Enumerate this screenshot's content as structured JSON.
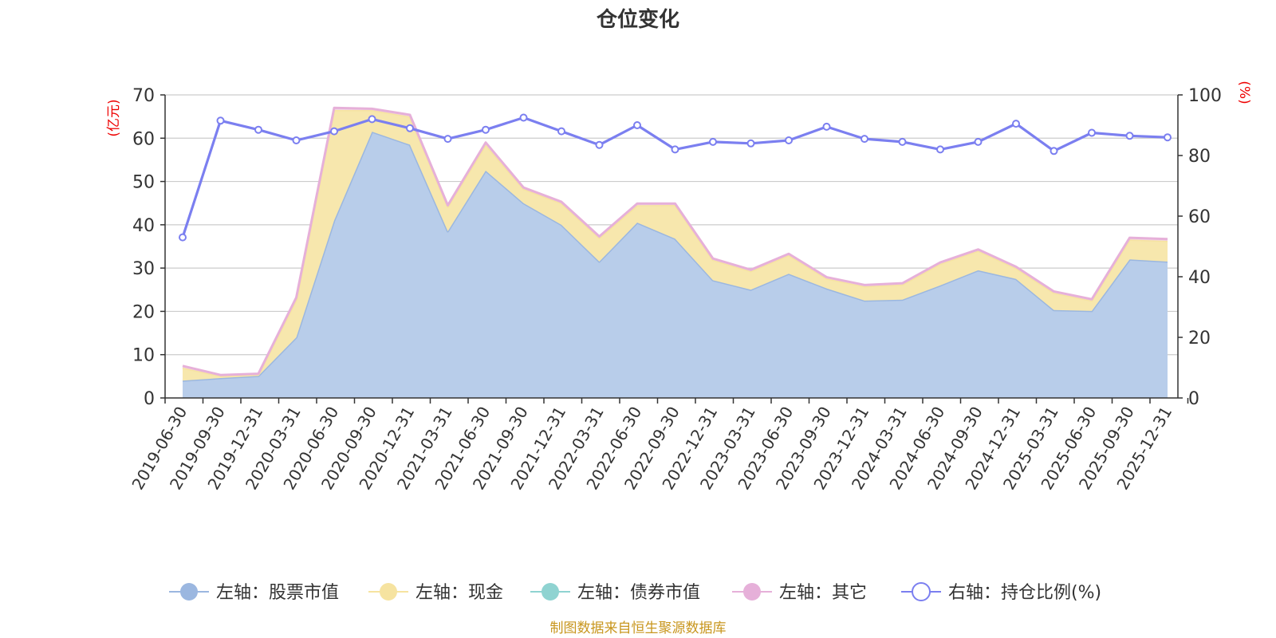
{
  "chart_data": {
    "type": "area",
    "title": "仓位变化",
    "source": "制图数据来自恒生聚源数据库",
    "left_unit": "(亿元)",
    "right_unit": "(%)",
    "left_ylim": [
      0,
      70
    ],
    "left_ticks": [
      0,
      10,
      20,
      30,
      40,
      50,
      60,
      70
    ],
    "right_ylim": [
      0,
      100
    ],
    "right_ticks": [
      0,
      20,
      40,
      60,
      80,
      100
    ],
    "grid": true,
    "legend_position": "bottom",
    "x_tick_labels": [
      "2019-06-30",
      "2019-09-30",
      "2019-12-31",
      "2020-03-31",
      "2020-06-30",
      "2020-09-30",
      "2020-12-31",
      "2021-03-31",
      "2021-06-30",
      "2021-09-30",
      "2021-12-31",
      "2022-03-31",
      "2022-06-30",
      "2022-09-30",
      "2022-12-31",
      "2023-03-31",
      "2023-06-30",
      "2023-09-30",
      "2023-12-31",
      "2024-03-31",
      "2024-06-30",
      "2024-09-30",
      "2024-12-31",
      "2025-03-31",
      "2025-06-30",
      "2025-09-30",
      "2025-12-31"
    ],
    "series": [
      {
        "name": "左轴：股票市值",
        "axis": "left",
        "color": "#9bb7e0",
        "fill": "#b8cdea",
        "values": [
          4.0,
          4.6,
          5.1,
          14.0,
          41.0,
          61.5,
          58.5,
          38.5,
          52.5,
          45.0,
          40.0,
          31.5,
          40.5,
          36.8,
          27.2,
          25.0,
          28.7,
          25.3,
          22.5,
          22.7,
          26.0,
          29.5,
          27.5,
          20.3,
          20.1,
          32.0,
          31.5
        ]
      },
      {
        "name": "左轴：现金",
        "axis": "left",
        "color": "#f6e3a0",
        "fill": "#f7e7ad",
        "values": [
          3.0,
          0.5,
          0.3,
          8.7,
          25.5,
          5.0,
          6.5,
          5.7,
          6.0,
          3.3,
          5.0,
          5.5,
          4.0,
          7.8,
          4.7,
          4.3,
          4.3,
          2.3,
          3.3,
          3.5,
          5.0,
          4.5,
          2.5,
          4.0,
          2.4,
          4.6,
          4.8
        ]
      },
      {
        "name": "左轴：债券市值",
        "axis": "left",
        "color": "#8fd3d1",
        "fill": "#8fd3d1",
        "values": [
          0,
          0,
          0,
          0,
          0,
          0,
          0,
          0,
          0,
          0,
          0,
          0,
          0,
          0,
          0,
          0,
          0,
          0,
          0,
          0,
          0,
          0,
          0,
          0,
          0,
          0,
          0
        ]
      },
      {
        "name": "左轴：其它",
        "axis": "left",
        "color": "#e6b0d9",
        "fill": "#f2d8e2",
        "values": [
          0.4,
          0.2,
          0.2,
          0.5,
          0.5,
          0.3,
          0.4,
          0.3,
          0.5,
          0.3,
          0.3,
          0.3,
          0.4,
          0.3,
          0.3,
          0.3,
          0.3,
          0.3,
          0.3,
          0.3,
          0.3,
          0.3,
          0.3,
          0.3,
          0.3,
          0.4,
          0.4
        ]
      },
      {
        "name": "右轴：持仓比例(%)",
        "axis": "right",
        "color": "#7b7ff0",
        "values": [
          53,
          91.5,
          88.5,
          85,
          88,
          92,
          89,
          85.5,
          88.5,
          92.5,
          88,
          83.5,
          90,
          82,
          84.5,
          84,
          85,
          89.5,
          85.5,
          84.5,
          82,
          84.5,
          90.5,
          81.5,
          87.5,
          86.5,
          86
        ]
      }
    ]
  }
}
